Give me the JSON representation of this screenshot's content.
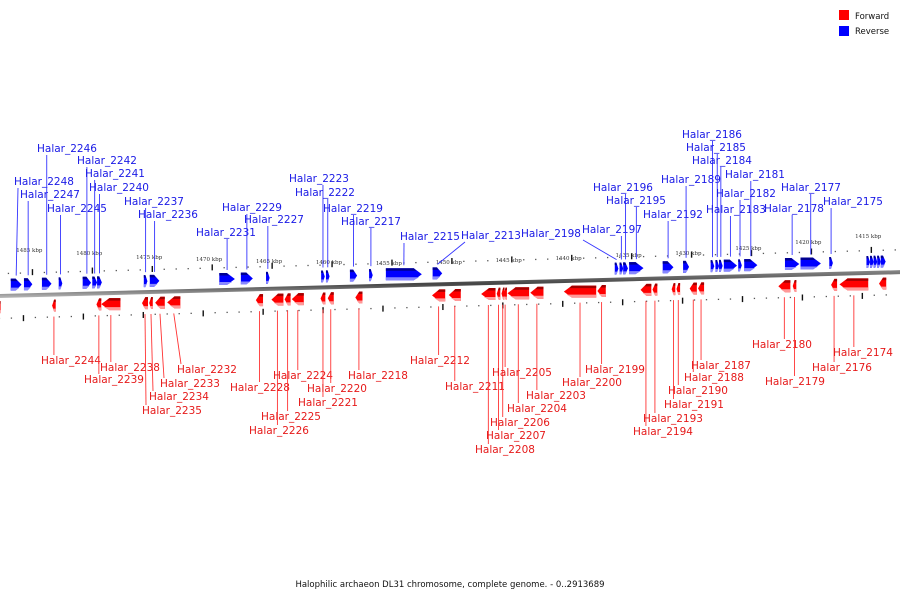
{
  "legend": {
    "items": [
      {
        "label": "Forward",
        "color": "#ff0000"
      },
      {
        "label": "Reverse",
        "color": "#0000ff"
      }
    ]
  },
  "footer": "Halophilic archaeon DL31 chromosome, complete genome. - 0..2913689",
  "colors": {
    "forward": "#ff0000",
    "forward_dark": "#a00000",
    "forward_light": "#ff9999",
    "reverse": "#0000ff",
    "reverse_dark": "#000090",
    "reverse_light": "#8888ff",
    "forward_label": "#e61a1a",
    "reverse_label": "#1a1ae6",
    "axis": "#555555"
  },
  "chart_data": {
    "type": "genome-track",
    "title": "Halophilic archaeon DL31 chromosome, complete genome. - 0..2913689",
    "view_kbp": [
      1413,
      1487
    ],
    "axis_direction": "decreasing-left-to-right",
    "ticks_kbp": [
      1485,
      1480,
      1475,
      1470,
      1465,
      1460,
      1455,
      1450,
      1445,
      1440,
      1435,
      1430,
      1425,
      1420,
      1415
    ],
    "tick_label_suffix": "kbp",
    "reverse_genes": [
      {
        "name": "Halar_2248",
        "start": 1486.8,
        "end": 1485.9
      },
      {
        "name": "Halar_2247",
        "start": 1485.7,
        "end": 1485.0
      },
      {
        "name": "Halar_2246",
        "start": 1484.2,
        "end": 1483.4
      },
      {
        "name": "Halar_2245",
        "start": 1482.8,
        "end": 1482.5
      },
      {
        "name": "Halar_2242",
        "start": 1480.8,
        "end": 1480.1
      },
      {
        "name": "Halar_2241",
        "start": 1480.0,
        "end": 1479.6
      },
      {
        "name": "Halar_2240",
        "start": 1479.6,
        "end": 1479.2
      },
      {
        "name": "Halar_2237",
        "start": 1475.7,
        "end": 1475.4
      },
      {
        "name": "Halar_2236",
        "start": 1475.2,
        "end": 1474.4
      },
      {
        "name": "Halar_2231",
        "start": 1469.4,
        "end": 1468.1
      },
      {
        "name": "Halar_2229",
        "start": 1467.6,
        "end": 1466.6
      },
      {
        "name": "Halar_2227",
        "start": 1465.5,
        "end": 1465.2
      },
      {
        "name": "Halar_2223",
        "start": 1460.9,
        "end": 1460.6
      },
      {
        "name": "Halar_2222",
        "start": 1460.5,
        "end": 1460.2
      },
      {
        "name": "Halar_2219",
        "start": 1458.5,
        "end": 1457.9
      },
      {
        "name": "Halar_2217",
        "start": 1456.9,
        "end": 1456.6
      },
      {
        "name": "Halar_2215",
        "start": 1455.5,
        "end": 1452.5
      },
      {
        "name": "Halar_2213",
        "start": 1451.6,
        "end": 1450.8
      },
      {
        "name": "Halar_2198",
        "start": 1436.4,
        "end": 1436.1
      },
      {
        "name": "Halar_2197",
        "start": 1436.0,
        "end": 1435.7
      },
      {
        "name": "Halar_2196",
        "start": 1435.7,
        "end": 1435.3
      },
      {
        "name": "Halar_2195",
        "start": 1435.2,
        "end": 1434.0
      },
      {
        "name": "Halar_2192",
        "start": 1432.4,
        "end": 1431.5
      },
      {
        "name": "Halar_2189",
        "start": 1430.7,
        "end": 1430.2
      },
      {
        "name": "Halar_2186",
        "start": 1428.4,
        "end": 1428.1
      },
      {
        "name": "Halar_2185",
        "start": 1428.0,
        "end": 1427.7
      },
      {
        "name": "Halar_2184",
        "start": 1427.7,
        "end": 1427.4
      },
      {
        "name": "Halar_2183",
        "start": 1427.3,
        "end": 1426.2
      },
      {
        "name": "Halar_2182",
        "start": 1426.1,
        "end": 1425.8
      },
      {
        "name": "Halar_2181",
        "start": 1425.6,
        "end": 1424.5
      },
      {
        "name": "Halar_2178",
        "start": 1422.2,
        "end": 1421.0
      },
      {
        "name": "Halar_2177",
        "start": 1420.9,
        "end": 1419.2
      },
      {
        "name": "Halar_2175",
        "start": 1418.5,
        "end": 1418.2
      },
      {
        "name": "",
        "start": 1415.4,
        "end": 1415.1
      },
      {
        "name": "",
        "start": 1415.1,
        "end": 1414.8
      },
      {
        "name": "",
        "start": 1414.8,
        "end": 1414.5
      },
      {
        "name": "",
        "start": 1414.5,
        "end": 1414.2
      },
      {
        "name": "",
        "start": 1414.2,
        "end": 1413.8
      }
    ],
    "forward_genes": [
      {
        "name": "",
        "start": 1487.4,
        "end": 1486.9
      },
      {
        "name": "Halar_2244",
        "start": 1482.6,
        "end": 1482.3
      },
      {
        "name": "Halar_2239",
        "start": 1478.9,
        "end": 1478.5
      },
      {
        "name": "Halar_2238",
        "start": 1478.5,
        "end": 1476.9
      },
      {
        "name": "Halar_2235",
        "start": 1475.1,
        "end": 1474.6
      },
      {
        "name": "Halar_2234",
        "start": 1474.5,
        "end": 1474.2
      },
      {
        "name": "Halar_2233",
        "start": 1474.0,
        "end": 1473.2
      },
      {
        "name": "Halar_2232",
        "start": 1473.0,
        "end": 1471.9
      },
      {
        "name": "Halar_2228",
        "start": 1465.6,
        "end": 1465.0
      },
      {
        "name": "Halar_2226",
        "start": 1464.3,
        "end": 1463.3
      },
      {
        "name": "Halar_2225",
        "start": 1463.2,
        "end": 1462.7
      },
      {
        "name": "Halar_2224",
        "start": 1462.6,
        "end": 1461.6
      },
      {
        "name": "Halar_2221",
        "start": 1460.2,
        "end": 1459.8
      },
      {
        "name": "Halar_2220",
        "start": 1459.6,
        "end": 1459.1
      },
      {
        "name": "Halar_2218",
        "start": 1457.3,
        "end": 1456.7
      },
      {
        "name": "Halar_2212",
        "start": 1450.9,
        "end": 1449.8
      },
      {
        "name": "Halar_2211",
        "start": 1449.5,
        "end": 1448.5
      },
      {
        "name": "Halar_2208",
        "start": 1446.8,
        "end": 1445.6
      },
      {
        "name": "Halar_2207",
        "start": 1445.5,
        "end": 1445.2
      },
      {
        "name": "Halar_2206",
        "start": 1445.1,
        "end": 1444.9
      },
      {
        "name": "Halar_2205",
        "start": 1444.9,
        "end": 1444.7
      },
      {
        "name": "Halar_2204",
        "start": 1444.6,
        "end": 1442.8
      },
      {
        "name": "Halar_2203",
        "start": 1442.7,
        "end": 1441.6
      },
      {
        "name": "Halar_2200",
        "start": 1439.9,
        "end": 1437.2
      },
      {
        "name": "Halar_2199",
        "start": 1437.1,
        "end": 1436.4
      },
      {
        "name": "Halar_2194",
        "start": 1433.5,
        "end": 1432.6
      },
      {
        "name": "Halar_2193",
        "start": 1432.5,
        "end": 1432.1
      },
      {
        "name": "Halar_2191",
        "start": 1430.9,
        "end": 1430.6
      },
      {
        "name": "Halar_2190",
        "start": 1430.5,
        "end": 1430.2
      },
      {
        "name": "Halar_2188",
        "start": 1429.4,
        "end": 1428.8
      },
      {
        "name": "Halar_2187",
        "start": 1428.7,
        "end": 1428.2
      },
      {
        "name": "Halar_2180",
        "start": 1422.0,
        "end": 1421.0
      },
      {
        "name": "Halar_2179",
        "start": 1420.8,
        "end": 1420.5
      },
      {
        "name": "Halar_2176",
        "start": 1417.6,
        "end": 1417.1
      },
      {
        "name": "Halar_2174",
        "start": 1416.9,
        "end": 1414.5
      },
      {
        "name": "",
        "start": 1413.6,
        "end": 1413.0
      }
    ]
  }
}
